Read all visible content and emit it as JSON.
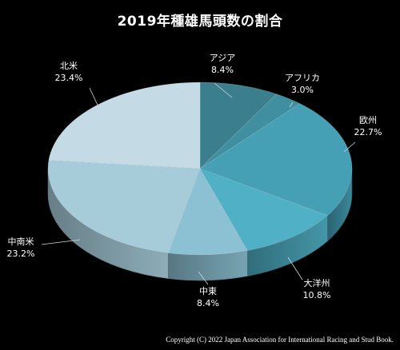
{
  "chart_data": {
    "type": "pie",
    "title": "2019年種雄馬頭数の割合",
    "slices": [
      {
        "label": "アジア",
        "value": 8.4,
        "display": "8.4%",
        "color": "#3b7f8e"
      },
      {
        "label": "アフリカ",
        "value": 3.0,
        "display": "3.0%",
        "color": "#3f8fa0"
      },
      {
        "label": "欧州",
        "value": 22.7,
        "display": "22.7%",
        "color": "#45a0b6"
      },
      {
        "label": "大洋州",
        "value": 10.8,
        "display": "10.8%",
        "color": "#50b0c6"
      },
      {
        "label": "中東",
        "value": 8.4,
        "display": "8.4%",
        "color": "#8cc1d3"
      },
      {
        "label": "中南米",
        "value": 23.2,
        "display": "23.2%",
        "color": "#a6cbd9"
      },
      {
        "label": "北米",
        "value": 23.4,
        "display": "23.4%",
        "color": "#c4dbe5"
      }
    ],
    "legend": "none",
    "labels_outside": true
  },
  "copyright": "Copyright (C) 2022 Japan Association for International Racing and Stud Book."
}
